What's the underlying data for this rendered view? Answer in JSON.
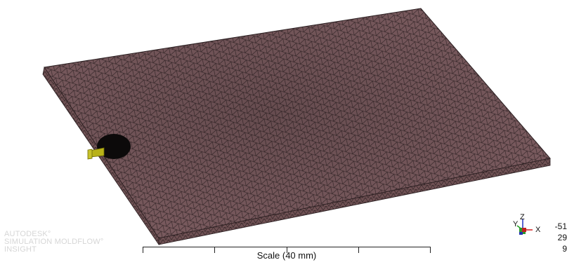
{
  "brand": {
    "line1": "AUTODESK°",
    "line2": "SIMULATION MOLDFLOW°",
    "line3": "INSIGHT"
  },
  "scale": {
    "label": "Scale (40 mm)"
  },
  "triad": {
    "x_label": "X",
    "y_label": "Y",
    "z_label": "Z"
  },
  "coords": [
    "-51",
    "29",
    "9"
  ],
  "colors": {
    "mesh_fill": "#7a5a5e",
    "mesh_edge": "#3a2a2c",
    "gate": "#b8b218",
    "gate_dark": "#111111",
    "axis_x": "#d02020",
    "axis_y": "#20a020",
    "axis_z": "#2030c0"
  }
}
